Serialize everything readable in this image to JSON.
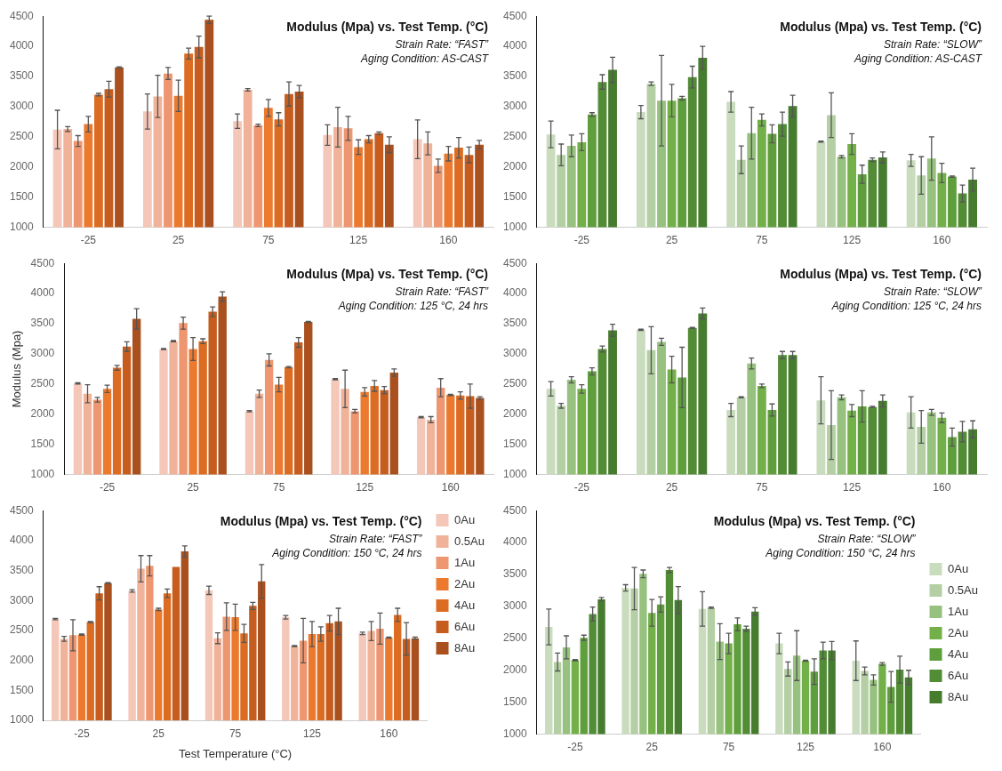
{
  "chart_data": [
    {
      "type": "bar",
      "title": "Modulus (Mpa) vs. Test Temp. (°C)",
      "annotations": [
        "Strain Rate: “FAST”",
        "Aging Condition: AS-CAST"
      ],
      "categories": [
        "-25",
        "25",
        "75",
        "125",
        "160"
      ],
      "ylim": [
        1000,
        4500
      ],
      "yticks": [
        1000,
        1500,
        2000,
        2500,
        3000,
        3500,
        4000,
        4500
      ],
      "grid": false,
      "legend": false,
      "series": [
        {
          "color": "#f4c7b8",
          "values": [
            2620,
            2920,
            2760,
            2530,
            2460
          ],
          "errors": [
            320,
            290,
            120,
            170,
            320
          ]
        },
        {
          "color": "#f0b399",
          "values": [
            2630,
            3170,
            3280,
            2660,
            2390
          ],
          "errors": [
            40,
            350,
            20,
            330,
            190
          ]
        },
        {
          "color": "#ee9670",
          "values": [
            2430,
            3550,
            2690,
            2640,
            2020
          ],
          "errors": [
            90,
            100,
            20,
            200,
            110
          ]
        },
        {
          "color": "#ec7a2e",
          "values": [
            2710,
            3180,
            2980,
            2330,
            2220
          ],
          "errors": [
            130,
            260,
            140,
            120,
            120
          ]
        },
        {
          "color": "#dc6c22",
          "values": [
            3200,
            3880,
            2790,
            2460,
            2320
          ],
          "errors": [
            20,
            90,
            110,
            60,
            170
          ]
        },
        {
          "color": "#c65d1e",
          "values": [
            3290,
            3990,
            3210,
            2560,
            2200
          ],
          "errors": [
            130,
            180,
            200,
            20,
            130
          ]
        },
        {
          "color": "#a9501e",
          "values": [
            3650,
            4440,
            3250,
            2370,
            2370
          ],
          "errors": [
            10,
            60,
            100,
            130,
            70
          ]
        }
      ]
    },
    {
      "type": "bar",
      "title": "Modulus (Mpa) vs. Test Temp. (°C)",
      "annotations": [
        "Strain Rate: “SLOW”",
        "Aging Condition: AS-CAST"
      ],
      "categories": [
        "-25",
        "25",
        "75",
        "125",
        "160"
      ],
      "ylim": [
        1000,
        4500
      ],
      "yticks": [
        1000,
        1500,
        2000,
        2500,
        3000,
        3500,
        4000,
        4500
      ],
      "grid": false,
      "legend": false,
      "series": [
        {
          "color": "#c9dcbd",
          "values": [
            2540,
            2910,
            3080,
            2420,
            2110
          ],
          "errors": [
            220,
            110,
            170,
            10,
            100
          ]
        },
        {
          "color": "#b3cfa3",
          "values": [
            2200,
            3380,
            2120,
            2860,
            1860
          ],
          "errors": [
            180,
            30,
            230,
            370,
            310
          ]
        },
        {
          "color": "#97c17e",
          "values": [
            2350,
            3100,
            2560,
            2170,
            2140
          ],
          "errors": [
            180,
            750,
            430,
            20,
            360
          ]
        },
        {
          "color": "#74b04a",
          "values": [
            2410,
            3100,
            2780,
            2380,
            1900
          ],
          "errors": [
            140,
            270,
            100,
            170,
            160
          ]
        },
        {
          "color": "#5f9e3c",
          "values": [
            2870,
            3140,
            2550,
            1880,
            1840
          ],
          "errors": [
            30,
            30,
            150,
            150,
            10
          ]
        },
        {
          "color": "#528c35",
          "values": [
            3410,
            3490,
            2710,
            2120,
            1560
          ],
          "errors": [
            120,
            180,
            200,
            30,
            140
          ]
        },
        {
          "color": "#467c2e",
          "values": [
            3610,
            3810,
            3010,
            2160,
            1790
          ],
          "errors": [
            210,
            190,
            180,
            90,
            190
          ]
        }
      ]
    },
    {
      "type": "bar",
      "title": "Modulus (Mpa) vs. Test Temp. (°C)",
      "annotations": [
        "Strain Rate: “FAST”",
        "Aging Condition: 125 °C, 24 hrs"
      ],
      "ylabel": "Modulus (Mpa)",
      "categories": [
        "-25",
        "25",
        "75",
        "125",
        "160"
      ],
      "ylim": [
        1000,
        4500
      ],
      "yticks": [
        1000,
        1500,
        2000,
        2500,
        3000,
        3500,
        4000,
        4500
      ],
      "grid": false,
      "legend": false,
      "series": [
        {
          "color": "#f4c7b8",
          "values": [
            2510,
            3080,
            2050,
            2580,
            1950
          ],
          "errors": [
            10,
            10,
            10,
            10,
            10
          ]
        },
        {
          "color": "#f0b399",
          "values": [
            2340,
            3210,
            2340,
            2420,
            1910
          ],
          "errors": [
            150,
            10,
            60,
            310,
            50
          ]
        },
        {
          "color": "#ee9670",
          "values": [
            2240,
            3510,
            2900,
            2050,
            2440
          ],
          "errors": [
            40,
            100,
            100,
            30,
            150
          ]
        },
        {
          "color": "#ec7a2e",
          "values": [
            2420,
            3080,
            2490,
            2370,
            2320
          ],
          "errors": [
            60,
            190,
            120,
            70,
            10
          ]
        },
        {
          "color": "#dc6c22",
          "values": [
            2770,
            3210,
            2780,
            2470,
            2310
          ],
          "errors": [
            40,
            40,
            10,
            90,
            60
          ]
        },
        {
          "color": "#c65d1e",
          "values": [
            3120,
            3700,
            3190,
            2400,
            2300
          ],
          "errors": [
            80,
            80,
            80,
            60,
            200
          ]
        },
        {
          "color": "#a9501e",
          "values": [
            3580,
            3950,
            3530,
            2690,
            2270
          ],
          "errors": [
            170,
            80,
            10,
            60,
            20
          ]
        }
      ]
    },
    {
      "type": "bar",
      "title": "Modulus (Mpa) vs. Test Temp. (°C)",
      "annotations": [
        "Strain Rate: “SLOW”",
        "Aging Condition: 125 °C, 24 hrs"
      ],
      "categories": [
        "-25",
        "25",
        "75",
        "125",
        "160"
      ],
      "ylim": [
        1000,
        4500
      ],
      "yticks": [
        1000,
        1500,
        2000,
        2500,
        3000,
        3500,
        4000,
        4500
      ],
      "grid": false,
      "legend": false,
      "series": [
        {
          "color": "#c9dcbd",
          "values": [
            2420,
            3400,
            2070,
            2230,
            2030
          ],
          "errors": [
            120,
            10,
            110,
            390,
            260
          ]
        },
        {
          "color": "#b3cfa3",
          "values": [
            2140,
            3060,
            2280,
            1820,
            1790
          ],
          "errors": [
            40,
            390,
            10,
            570,
            270
          ]
        },
        {
          "color": "#97c17e",
          "values": [
            2570,
            3200,
            2840,
            2280,
            2030
          ],
          "errors": [
            50,
            60,
            90,
            40,
            50
          ]
        },
        {
          "color": "#74b04a",
          "values": [
            2420,
            2740,
            2470,
            2060,
            1940
          ],
          "errors": [
            70,
            220,
            30,
            100,
            80
          ]
        },
        {
          "color": "#5f9e3c",
          "values": [
            2710,
            2610,
            2070,
            2130,
            1620
          ],
          "errors": [
            60,
            500,
            100,
            260,
            150
          ]
        },
        {
          "color": "#528c35",
          "values": [
            3080,
            3430,
            2980,
            2120,
            1710
          ],
          "errors": [
            50,
            10,
            60,
            10,
            170
          ]
        },
        {
          "color": "#467c2e",
          "values": [
            3390,
            3670,
            2980,
            2220,
            1750
          ],
          "errors": [
            100,
            90,
            60,
            100,
            140
          ]
        }
      ]
    },
    {
      "type": "bar",
      "title": "Modulus (Mpa) vs. Test Temp. (°C)",
      "annotations": [
        "Strain Rate: “FAST”",
        "Aging Condition: 150 °C, 24 hrs"
      ],
      "xlabel": "Test Temperature (°C)",
      "categories": [
        "-25",
        "25",
        "75",
        "125",
        "160"
      ],
      "ylim": [
        1000,
        4500
      ],
      "yticks": [
        1000,
        1500,
        2000,
        2500,
        3000,
        3500,
        4000,
        4500
      ],
      "grid": false,
      "legend": "top right",
      "series": [
        {
          "name": "0Au",
          "color": "#f4c7b8",
          "values": [
            2690,
            3160,
            3170,
            2720,
            2450
          ],
          "errors": [
            10,
            20,
            70,
            30,
            20
          ]
        },
        {
          "name": "0.5Au",
          "color": "#f0b399",
          "values": [
            2360,
            3530,
            2370,
            2240,
            2490
          ],
          "errors": [
            40,
            220,
            90,
            10,
            160
          ]
        },
        {
          "name": "1Au",
          "color": "#ee9670",
          "values": [
            2420,
            3580,
            2730,
            2330,
            2530
          ],
          "errors": [
            260,
            170,
            230,
            370,
            260
          ]
        },
        {
          "name": "2Au",
          "color": "#ec7a2e",
          "values": [
            2430,
            2850,
            2720,
            2440,
            2380
          ],
          "errors": [
            10,
            20,
            220,
            210,
            10
          ]
        },
        {
          "name": "4Au",
          "color": "#dc6c22",
          "values": [
            2640,
            3120,
            2450,
            2440,
            2760
          ],
          "errors": [
            10,
            70,
            150,
            120,
            110
          ]
        },
        {
          "name": "6Au",
          "color": "#c65d1e",
          "values": [
            3120,
            3560,
            2910,
            2620,
            2360
          ],
          "errors": [
            110,
            null,
            60,
            130,
            270
          ]
        },
        {
          "name": "8Au",
          "color": "#a9501e",
          "values": [
            3290,
            3820,
            3320,
            2650,
            2370
          ],
          "errors": [
            10,
            90,
            280,
            220,
            20
          ]
        }
      ]
    },
    {
      "type": "bar",
      "title": "Modulus (Mpa) vs. Test Temp. (°C)",
      "annotations": [
        "Strain Rate: “SLOW”",
        "Aging Condition: 150 °C, 24 hrs"
      ],
      "categories": [
        "-25",
        "25",
        "75",
        "125",
        "160"
      ],
      "ylim": [
        1000,
        4500
      ],
      "yticks": [
        1000,
        1500,
        2000,
        2500,
        3000,
        3500,
        4000,
        4500
      ],
      "grid": false,
      "legend": "right",
      "series": [
        {
          "name": "0Au",
          "color": "#c9dcbd",
          "values": [
            2680,
            3290,
            2960,
            2420,
            2150
          ],
          "errors": [
            280,
            50,
            270,
            160,
            310
          ]
        },
        {
          "name": "0.5Au",
          "color": "#b3cfa3",
          "values": [
            2130,
            3280,
            2980,
            2020,
            1990
          ],
          "errors": [
            140,
            330,
            10,
            110,
            60
          ]
        },
        {
          "name": "1Au",
          "color": "#97c17e",
          "values": [
            2360,
            3510,
            2450,
            2230,
            1850
          ],
          "errors": [
            180,
            60,
            280,
            390,
            80
          ]
        },
        {
          "name": "2Au",
          "color": "#74b04a",
          "values": [
            2160,
            2900,
            2420,
            2150,
            2100
          ],
          "errors": [
            10,
            210,
            160,
            10,
            20
          ]
        },
        {
          "name": "4Au",
          "color": "#5f9e3c",
          "values": [
            2510,
            3030,
            2720,
            1980,
            1740
          ],
          "errors": [
            40,
            120,
            100,
            200,
            240
          ]
        },
        {
          "name": "6Au",
          "color": "#528c35",
          "values": [
            2880,
            3570,
            2650,
            2310,
            2010
          ],
          "errors": [
            110,
            40,
            40,
            130,
            210
          ]
        },
        {
          "name": "8Au",
          "color": "#467c2e",
          "values": [
            3110,
            3100,
            2920,
            2310,
            1890
          ],
          "errors": [
            30,
            210,
            60,
            140,
            110
          ]
        }
      ]
    }
  ]
}
